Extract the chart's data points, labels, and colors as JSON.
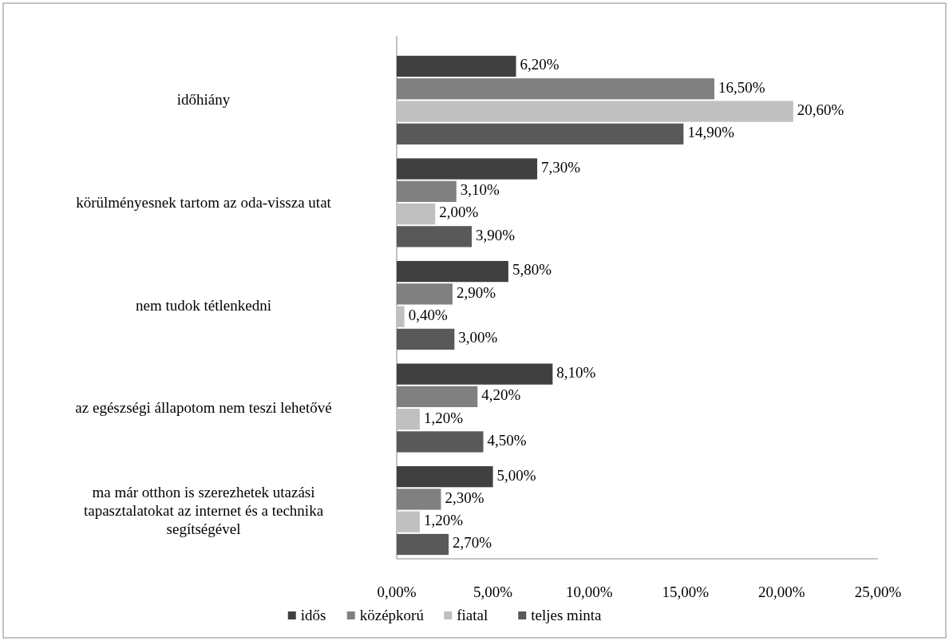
{
  "chart_data": {
    "type": "bar",
    "orientation": "horizontal",
    "categories": [
      "időhiány",
      "körülményesnek tartom az oda-vissza utat",
      "nem tudok tétlenkedni",
      "az egészségi állapotom nem teszi lehetővé",
      "ma már otthon is szerezhetek utazási tapasztalatokat az internet és a technika segítségével"
    ],
    "series": [
      {
        "name": "idős",
        "color": "#404040",
        "values": [
          6.2,
          7.3,
          5.8,
          8.1,
          5.0
        ],
        "value_labels": [
          "6,20%",
          "7,30%",
          "5,80%",
          "8,10%",
          "5,00%"
        ]
      },
      {
        "name": "középkorú",
        "color": "#808080",
        "values": [
          16.5,
          3.1,
          2.9,
          4.2,
          2.3
        ],
        "value_labels": [
          "16,50%",
          "3,10%",
          "2,90%",
          "4,20%",
          "2,30%"
        ]
      },
      {
        "name": "fiatal",
        "color": "#c0c0c0",
        "values": [
          20.6,
          2.0,
          0.4,
          1.2,
          1.2
        ],
        "value_labels": [
          "20,60%",
          "2,00%",
          "0,40%",
          "1,20%",
          "1,20%"
        ]
      },
      {
        "name": "teljes minta",
        "color": "#595959",
        "values": [
          14.9,
          3.9,
          3.0,
          4.5,
          2.7
        ],
        "value_labels": [
          "14,90%",
          "3,90%",
          "3,00%",
          "4,50%",
          "2,70%"
        ]
      }
    ],
    "xlim": [
      0,
      25
    ],
    "xticks": [
      {
        "value": 0,
        "label": "0,00%"
      },
      {
        "value": 5,
        "label": "5,00%"
      },
      {
        "value": 10,
        "label": "10,00%"
      },
      {
        "value": 15,
        "label": "15,00%"
      },
      {
        "value": 20,
        "label": "20,00%"
      },
      {
        "value": 25,
        "label": "25,00%"
      }
    ],
    "grid": false,
    "legend": "bottom"
  }
}
